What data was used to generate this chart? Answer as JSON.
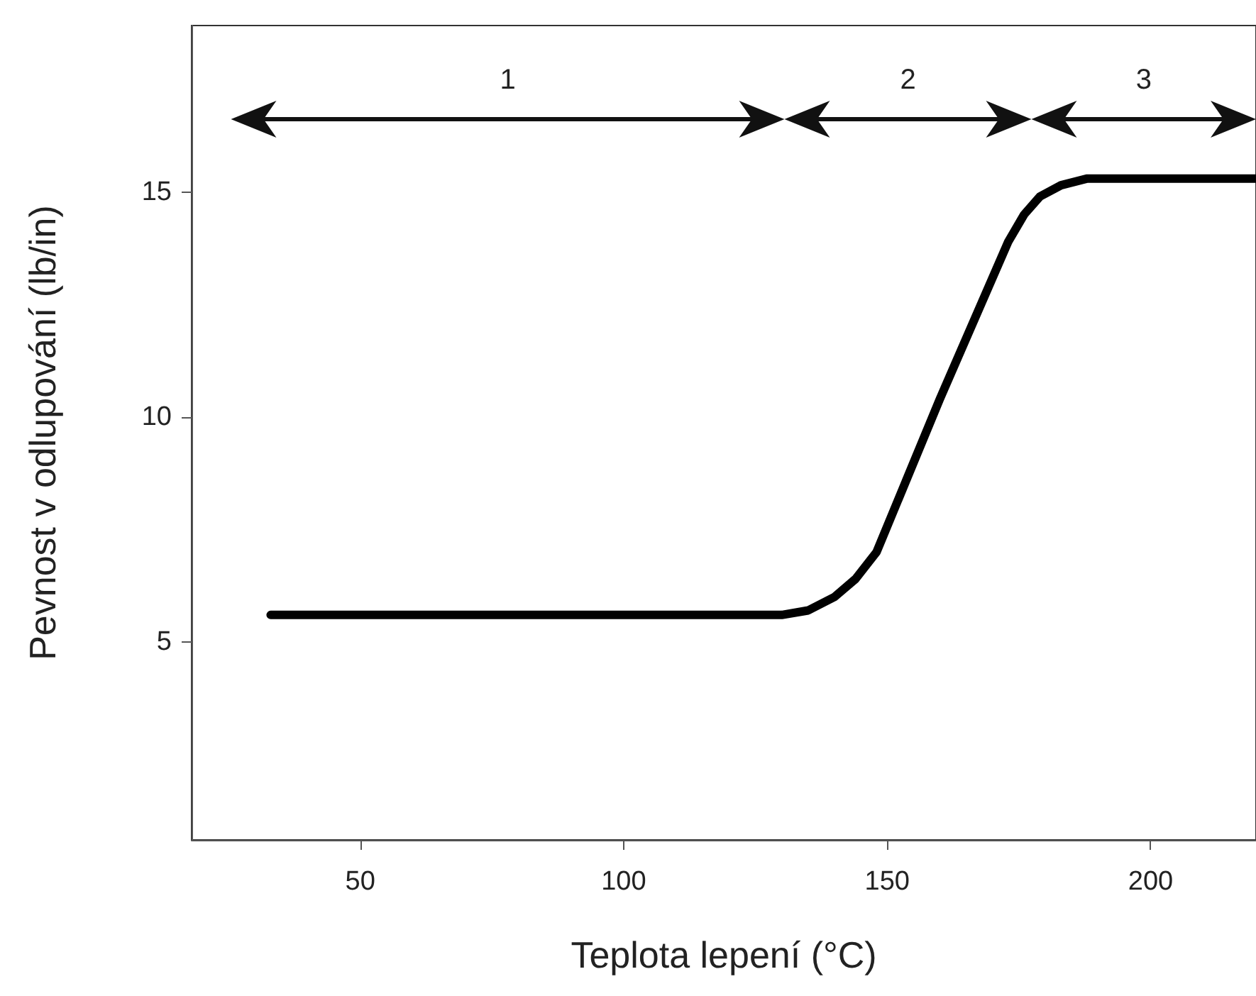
{
  "chart_data": {
    "type": "line",
    "xlabel": "Teplota lepení (°C)",
    "ylabel": "Pevnost v odlupování (lb/in)",
    "x": [
      33,
      130,
      135,
      140,
      144,
      148,
      160,
      173,
      176,
      179,
      183,
      188,
      193,
      220
    ],
    "series": [
      {
        "color": "#000000",
        "values": [
          5.6,
          5.6,
          5.7,
          6.0,
          6.4,
          7.0,
          10.4,
          13.9,
          14.5,
          14.9,
          15.15,
          15.3,
          15.3,
          15.3
        ]
      }
    ],
    "xlim": [
      18,
      220
    ],
    "xticks": [
      50,
      100,
      150,
      200
    ],
    "ylim": [
      0.6,
      18.7
    ],
    "yticks": [
      5,
      10,
      15
    ],
    "annotations": [
      "1",
      "2",
      "3"
    ],
    "grid": false,
    "marker": "none",
    "line_style": "solid"
  }
}
